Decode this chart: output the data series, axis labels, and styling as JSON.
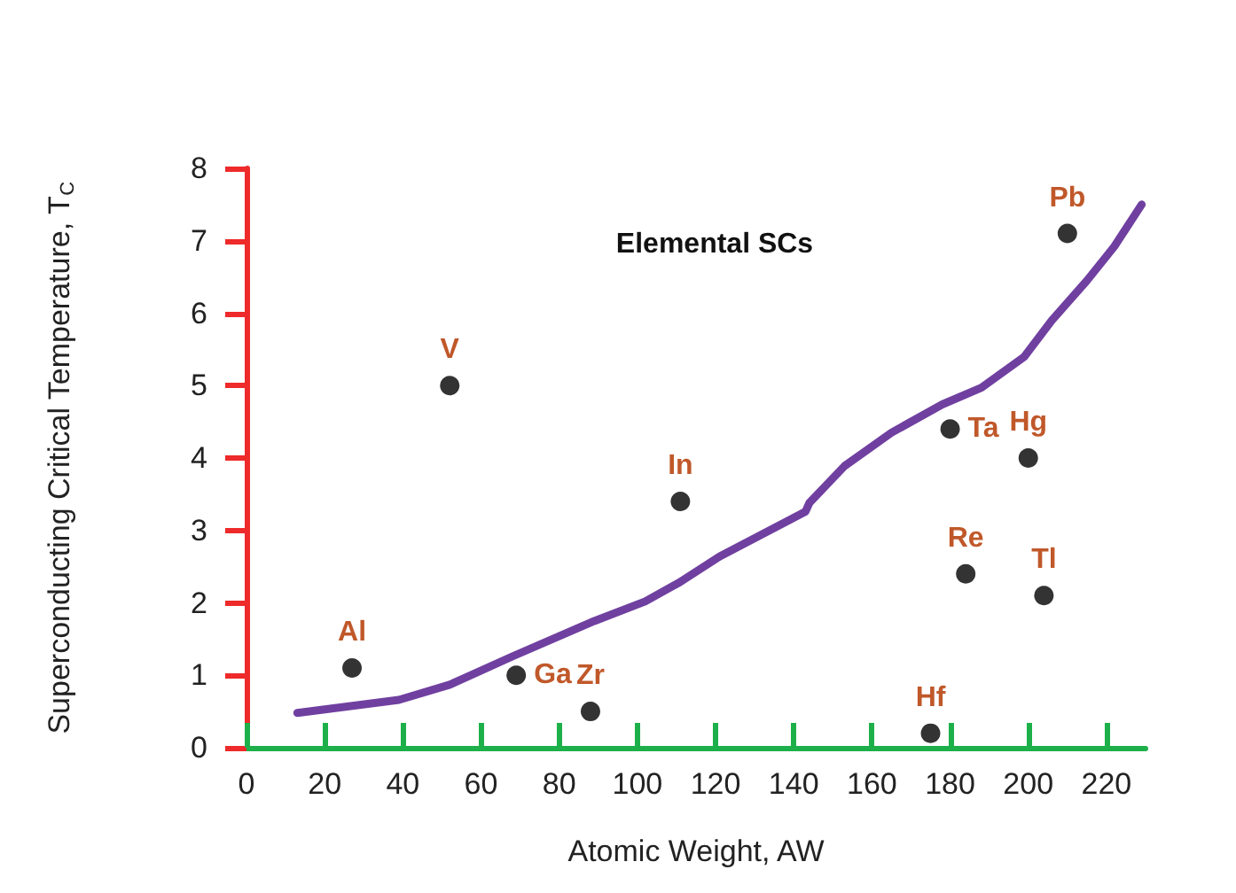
{
  "chart_data": {
    "type": "scatter",
    "title": "Elemental SCs",
    "xlabel": "Atomic Weight, AW",
    "ylabel": "Superconducting Critical Temperature, T$_{C}$",
    "series": [
      {
        "color": "#000000",
        "marker": "circle",
        "x": [
          27,
          52,
          69,
          88,
          111,
          180,
          200,
          184,
          204,
          175,
          210
        ],
        "values": [
          1.1,
          5.0,
          1.0,
          0.5,
          3.4,
          4.4,
          4.0,
          2.4,
          2.1,
          0.2,
          7.1
        ]
      },
      {
        "type": "line",
        "color": "#7040a0",
        "marker": "none",
        "line_style": "solid",
        "x": [
          13,
          39,
          52,
          68,
          89,
          102,
          111,
          121,
          143,
          144,
          153,
          165,
          178,
          188,
          199,
          206,
          215,
          222,
          229
        ],
        "values": [
          0.48,
          0.66,
          0.87,
          1.26,
          1.75,
          2.02,
          2.29,
          2.64,
          3.26,
          3.38,
          3.89,
          4.35,
          4.74,
          4.97,
          5.4,
          5.9,
          6.45,
          6.92,
          7.5
        ]
      }
    ],
    "annotations": [
      {
        "text": "Al",
        "x": 27,
        "y": 1.1
      },
      {
        "text": "V",
        "x": 52,
        "y": 5.0
      },
      {
        "text": "Ga",
        "x": 69,
        "y": 1.0
      },
      {
        "text": "Zr",
        "x": 88,
        "y": 0.5
      },
      {
        "text": "In",
        "x": 111,
        "y": 3.4
      },
      {
        "text": "Ta",
        "x": 180,
        "y": 4.4
      },
      {
        "text": "Hg",
        "x": 200,
        "y": 4.0
      },
      {
        "text": "Re",
        "x": 184,
        "y": 2.4
      },
      {
        "text": "Tl",
        "x": 204,
        "y": 2.1
      },
      {
        "text": "Hf",
        "x": 175,
        "y": 0.2
      },
      {
        "text": "Pb",
        "x": 210,
        "y": 7.1
      }
    ],
    "xlim": [
      0,
      230
    ],
    "xticks": [
      0,
      20,
      40,
      60,
      80,
      100,
      120,
      140,
      160,
      180,
      200,
      220
    ],
    "ylim": [
      0,
      8
    ],
    "yticks": [
      0,
      1,
      2,
      3,
      4,
      5,
      6,
      7,
      8
    ],
    "grid": false
  }
}
